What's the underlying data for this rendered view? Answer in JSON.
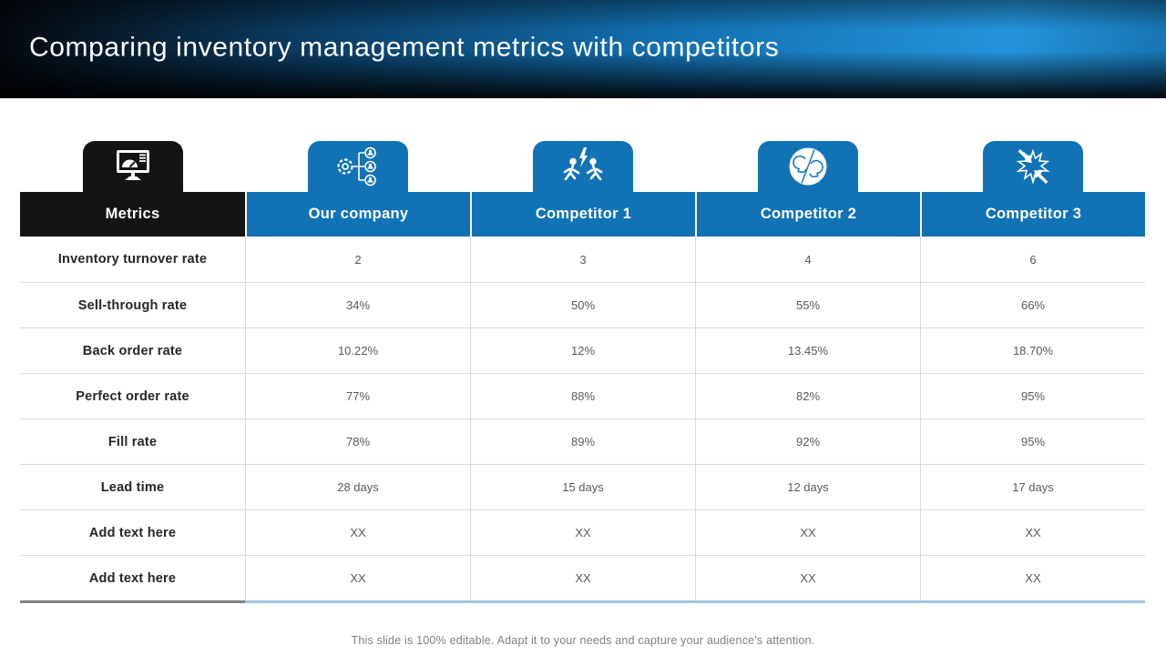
{
  "slide": {
    "title": "Comparing inventory management metrics with competitors",
    "footer": "This slide is 100% editable. Adapt it to your needs and capture your audience's attention."
  },
  "colors": {
    "accent_blue": "#1173b6",
    "tab_black": "#141414",
    "header_text": "#ffffff",
    "metrics_bottom_border": "#808080",
    "values_bottom_border": "#9fc5e8",
    "row_divider": "#d9d9d9"
  },
  "table": {
    "columns": [
      {
        "label": "Metrics",
        "icon": "dashboard-monitor-icon",
        "style": "black"
      },
      {
        "label": "Our company",
        "icon": "team-structure-icon",
        "style": "blue"
      },
      {
        "label": "Competitor 1",
        "icon": "rivalry-people-icon",
        "style": "blue"
      },
      {
        "label": "Competitor 2",
        "icon": "versus-heads-icon",
        "style": "blue"
      },
      {
        "label": "Competitor 3",
        "icon": "clash-arrows-icon",
        "style": "blue"
      }
    ],
    "rows": [
      {
        "metric": "Inventory turnover rate",
        "values": [
          "2",
          "3",
          "4",
          "6"
        ]
      },
      {
        "metric": "Sell-through rate",
        "values": [
          "34%",
          "50%",
          "55%",
          "66%"
        ]
      },
      {
        "metric": "Back order rate",
        "values": [
          "10.22%",
          "12%",
          "13.45%",
          "18.70%"
        ]
      },
      {
        "metric": "Perfect order rate",
        "values": [
          "77%",
          "88%",
          "82%",
          "95%"
        ]
      },
      {
        "metric": "Fill rate",
        "values": [
          "78%",
          "89%",
          "92%",
          "95%"
        ]
      },
      {
        "metric": "Lead time",
        "values": [
          "28 days",
          "15 days",
          "12 days",
          "17 days"
        ]
      },
      {
        "metric": "Add text here",
        "values": [
          "XX",
          "XX",
          "XX",
          "XX"
        ]
      },
      {
        "metric": "Add text here",
        "values": [
          "XX",
          "XX",
          "XX",
          "XX"
        ]
      }
    ]
  }
}
